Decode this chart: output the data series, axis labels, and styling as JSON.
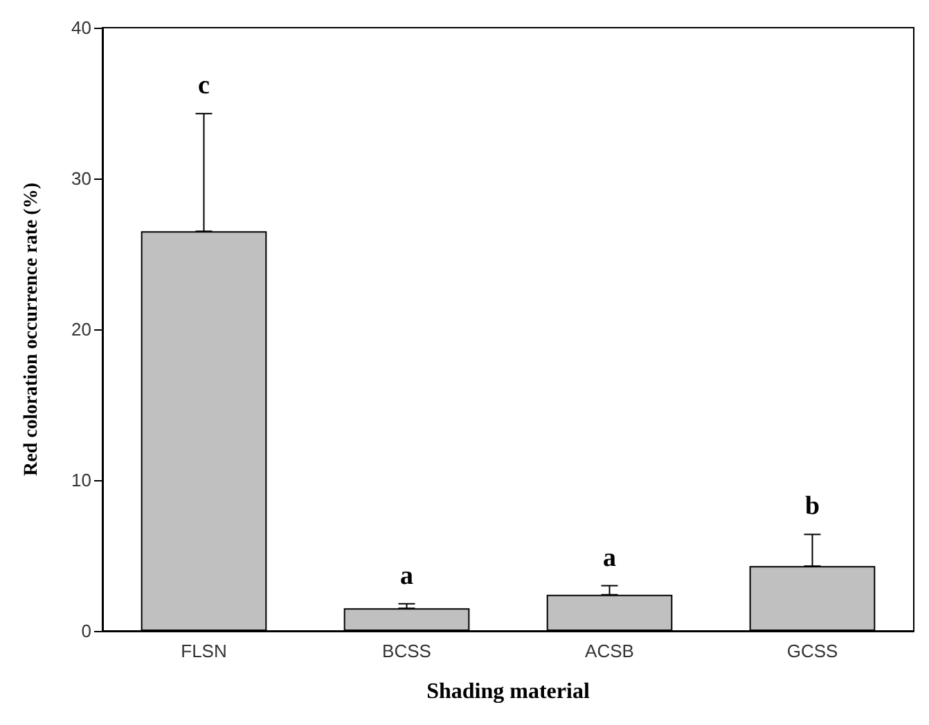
{
  "chart_data": {
    "type": "bar",
    "xlabel": "Shading material",
    "ylabel": "Red coloration occurrence rate (%)",
    "categories": [
      "FLSN",
      "BCSS",
      "ACSB",
      "GCSS"
    ],
    "values": [
      26.5,
      1.5,
      2.4,
      4.3
    ],
    "errors": [
      [
        26.5,
        34.3
      ],
      [
        1.5,
        1.8
      ],
      [
        2.4,
        3.0
      ],
      [
        4.3,
        6.4
      ]
    ],
    "color": "#c0c0c0",
    "ylim": [
      0,
      40
    ],
    "yticks": [
      0,
      10,
      20,
      30,
      40
    ],
    "grid": false,
    "annotations": [
      "c",
      "a",
      "a",
      "b"
    ]
  }
}
